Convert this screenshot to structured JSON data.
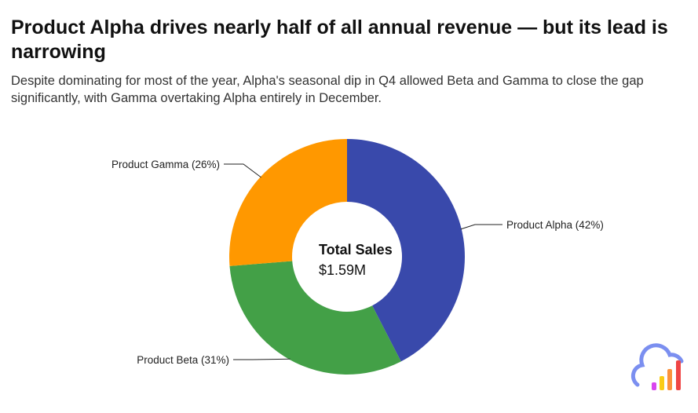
{
  "title": "Product Alpha drives nearly half of all annual revenue — but its lead is narrowing",
  "subtitle": "Despite dominating for most of the year, Alpha's seasonal dip in Q4 allowed Beta and Gamma to close the gap significantly, with Gamma overtaking Alpha entirely in December.",
  "chart_data": {
    "type": "pie",
    "donut": true,
    "slices": [
      {
        "name": "Product Alpha",
        "value": 42,
        "label": "Product Alpha (42%)",
        "color": "#3949AB"
      },
      {
        "name": "Product Beta",
        "value": 31,
        "label": "Product Beta (31%)",
        "color": "#43A047"
      },
      {
        "name": "Product Gamma",
        "value": 26,
        "label": "Product Gamma (26%)",
        "color": "#FF9800"
      }
    ],
    "center_title": "Total Sales",
    "center_value": "$1.59M"
  },
  "logo": {
    "name": "cloud-bar-chart-logo"
  }
}
